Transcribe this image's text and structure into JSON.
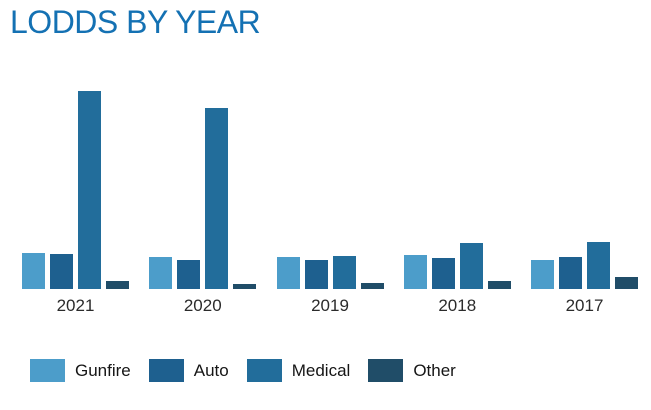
{
  "page": {
    "title": "LODDS BY YEAR"
  },
  "colors": {
    "background": "#ffffff",
    "title_text": "#1471b3",
    "axis_label_text": "#2b2b2b",
    "legend_text": "#151515"
  },
  "chart_data": {
    "type": "bar",
    "title": "LODDS BY YEAR",
    "xlabel": "",
    "ylabel": "",
    "categories": [
      "2021",
      "2020",
      "2019",
      "2018",
      "2017"
    ],
    "series": [
      {
        "name": "Gunfire",
        "color": "#4c9dca",
        "values": [
          36,
          32,
          32,
          34,
          29
        ]
      },
      {
        "name": "Auto",
        "color": "#1e608f",
        "values": [
          35,
          29,
          29,
          31,
          32
        ]
      },
      {
        "name": "Medical",
        "color": "#226d9b",
        "values": [
          198,
          181,
          33,
          46,
          47
        ]
      },
      {
        "name": "Other",
        "color": "#204d68",
        "values": [
          8,
          5,
          6,
          8,
          12
        ]
      }
    ],
    "ylim": [
      0,
      240
    ],
    "grid": false,
    "value_axis_labels": false,
    "legend_position": "bottom"
  }
}
